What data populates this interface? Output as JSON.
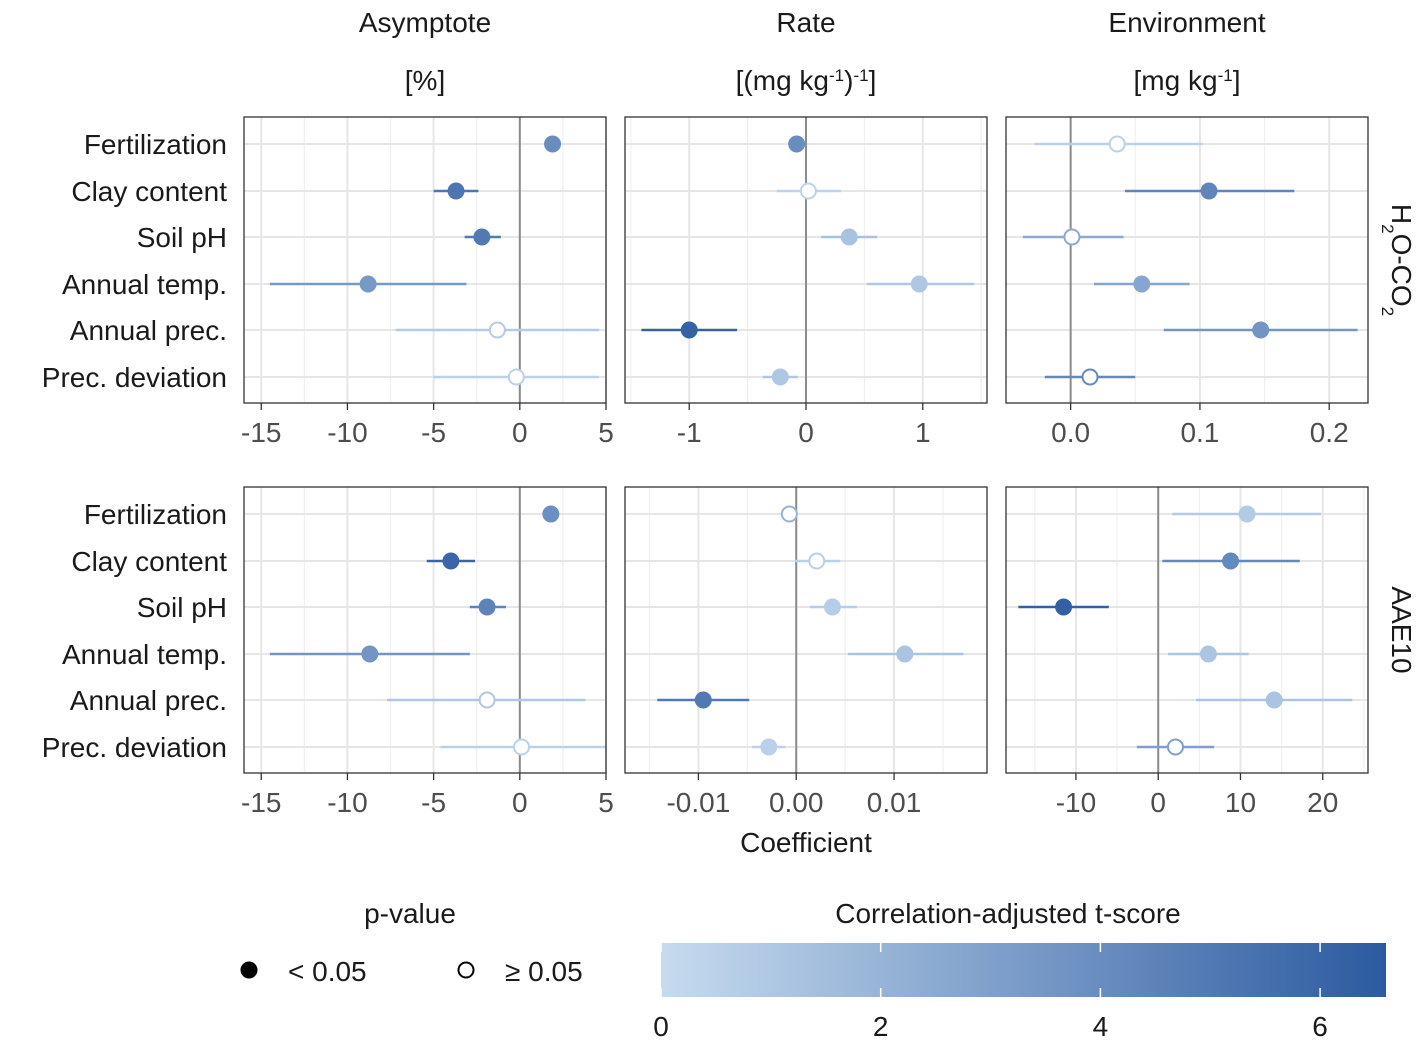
{
  "chart_data": {
    "type": "forest-plot",
    "xlabel": "Coefficient",
    "columns": [
      {
        "title": "Asymptote",
        "unit": "[%]"
      },
      {
        "title": "Rate",
        "unit_html": "[(mg kg<tspan baseline-shift=\"super\" font-size=\"17\">-1</tspan>)<tspan baseline-shift=\"super\" font-size=\"17\">-1</tspan>]"
      },
      {
        "title": "Environment",
        "unit_html": "[mg kg<tspan baseline-shift=\"super\" font-size=\"17\">-1</tspan>]"
      }
    ],
    "rows": [
      {
        "label_html": "H<tspan baseline-shift=\"sub\" font-size=\"17\">2</tspan>O-CO<tspan baseline-shift=\"sub\" font-size=\"17\">2</tspan>"
      },
      {
        "label": "AAE10"
      }
    ],
    "predictors": [
      "Fertilization",
      "Clay content",
      "Soil pH",
      "Annual temp.",
      "Annual prec.",
      "Prec. deviation"
    ],
    "panels": [
      {
        "row": 0,
        "col": 0,
        "xlim": [
          -16.0,
          5.0
        ],
        "ticks": [
          -15,
          -10,
          -5,
          0,
          5
        ],
        "tick_labels": [
          "-15",
          "-10",
          "-5",
          "0",
          "5"
        ],
        "estimates": [
          {
            "est": 1.9,
            "lo": 1.9,
            "hi": 1.9,
            "t": 4.0,
            "sig": true
          },
          {
            "est": -3.7,
            "lo": -5.0,
            "hi": -2.4,
            "t": 5.2,
            "sig": true
          },
          {
            "est": -2.2,
            "lo": -3.2,
            "hi": -1.1,
            "t": 5.0,
            "sig": true
          },
          {
            "est": -8.8,
            "lo": -14.5,
            "hi": -3.1,
            "t": 3.4,
            "sig": true
          },
          {
            "est": -1.3,
            "lo": -7.2,
            "hi": 4.6,
            "t": 0.8,
            "sig": false
          },
          {
            "est": -0.2,
            "lo": -5.0,
            "hi": 4.6,
            "t": 0.5,
            "sig": false
          }
        ]
      },
      {
        "row": 0,
        "col": 1,
        "xlim": [
          -1.55,
          1.55
        ],
        "ticks": [
          -1,
          0,
          1
        ],
        "tick_labels": [
          "-1",
          "0",
          "1"
        ],
        "estimates": [
          {
            "est": -0.08,
            "lo": -0.08,
            "hi": -0.08,
            "t": 4.0,
            "sig": true
          },
          {
            "est": 0.02,
            "lo": -0.25,
            "hi": 0.3,
            "t": 0.4,
            "sig": false
          },
          {
            "est": 0.37,
            "lo": 0.13,
            "hi": 0.61,
            "t": 1.3,
            "sig": true
          },
          {
            "est": 0.97,
            "lo": 0.52,
            "hi": 1.44,
            "t": 1.0,
            "sig": true
          },
          {
            "est": -1.0,
            "lo": -1.41,
            "hi": -0.59,
            "t": 6.2,
            "sig": true
          },
          {
            "est": -0.22,
            "lo": -0.37,
            "hi": -0.07,
            "t": 1.0,
            "sig": true
          }
        ]
      },
      {
        "row": 0,
        "col": 2,
        "xlim": [
          -0.05,
          0.23
        ],
        "ticks": [
          0.0,
          0.1,
          0.2
        ],
        "tick_labels": [
          "0.0",
          "0.1",
          "0.2"
        ],
        "estimates": [
          {
            "est": 0.036,
            "lo": -0.028,
            "hi": 0.102,
            "t": 0.5,
            "sig": false
          },
          {
            "est": 0.107,
            "lo": 0.042,
            "hi": 0.173,
            "t": 4.4,
            "sig": true
          },
          {
            "est": 0.001,
            "lo": -0.037,
            "hi": 0.041,
            "t": 2.5,
            "sig": false
          },
          {
            "est": 0.055,
            "lo": 0.018,
            "hi": 0.092,
            "t": 2.7,
            "sig": true
          },
          {
            "est": 0.147,
            "lo": 0.072,
            "hi": 0.222,
            "t": 3.6,
            "sig": true
          },
          {
            "est": 0.015,
            "lo": -0.02,
            "hi": 0.05,
            "t": 4.2,
            "sig": false
          }
        ]
      },
      {
        "row": 1,
        "col": 0,
        "xlim": [
          -16.0,
          5.0
        ],
        "ticks": [
          -15,
          -10,
          -5,
          0,
          5
        ],
        "tick_labels": [
          "-15",
          "-10",
          "-5",
          "0",
          "5"
        ],
        "estimates": [
          {
            "est": 1.8,
            "lo": 1.8,
            "hi": 1.8,
            "t": 3.9,
            "sig": true
          },
          {
            "est": -4.0,
            "lo": -5.4,
            "hi": -2.6,
            "t": 6.0,
            "sig": true
          },
          {
            "est": -1.9,
            "lo": -2.9,
            "hi": -0.8,
            "t": 4.5,
            "sig": true
          },
          {
            "est": -8.7,
            "lo": -14.5,
            "hi": -2.9,
            "t": 3.6,
            "sig": true
          },
          {
            "est": -1.9,
            "lo": -7.7,
            "hi": 3.8,
            "t": 1.0,
            "sig": false
          },
          {
            "est": 0.1,
            "lo": -4.6,
            "hi": 5.0,
            "t": 0.5,
            "sig": false
          }
        ]
      },
      {
        "row": 1,
        "col": 1,
        "xlim": [
          -0.0175,
          0.0195
        ],
        "ticks": [
          -0.01,
          0.0,
          0.01
        ],
        "tick_labels": [
          "-0.01",
          "0.00",
          "0.01"
        ],
        "estimates": [
          {
            "est": -0.0007,
            "lo": -0.0007,
            "hi": -0.0007,
            "t": 2.0,
            "sig": false
          },
          {
            "est": 0.0021,
            "lo": -0.0001,
            "hi": 0.0045,
            "t": 0.6,
            "sig": false
          },
          {
            "est": 0.0037,
            "lo": 0.0014,
            "hi": 0.0062,
            "t": 0.7,
            "sig": true
          },
          {
            "est": 0.0111,
            "lo": 0.0053,
            "hi": 0.0171,
            "t": 1.2,
            "sig": true
          },
          {
            "est": -0.0095,
            "lo": -0.0142,
            "hi": -0.0048,
            "t": 5.0,
            "sig": true
          },
          {
            "est": -0.0028,
            "lo": -0.0045,
            "hi": -0.0011,
            "t": 0.5,
            "sig": true
          }
        ]
      },
      {
        "row": 1,
        "col": 2,
        "xlim": [
          -18.5,
          25.5
        ],
        "ticks": [
          -10,
          0,
          10,
          20
        ],
        "tick_labels": [
          "-10",
          "0",
          "10",
          "20"
        ],
        "estimates": [
          {
            "est": 10.8,
            "lo": 1.7,
            "hi": 19.8,
            "t": 0.8,
            "sig": true
          },
          {
            "est": 8.8,
            "lo": 0.5,
            "hi": 17.2,
            "t": 4.2,
            "sig": true
          },
          {
            "est": -11.5,
            "lo": -17.0,
            "hi": -6.0,
            "t": 6.3,
            "sig": true
          },
          {
            "est": 6.1,
            "lo": 1.2,
            "hi": 11.0,
            "t": 1.1,
            "sig": true
          },
          {
            "est": 14.1,
            "lo": 4.6,
            "hi": 23.6,
            "t": 1.2,
            "sig": true
          },
          {
            "est": 2.1,
            "lo": -2.6,
            "hi": 6.8,
            "t": 3.0,
            "sig": false
          }
        ]
      }
    ],
    "legend": {
      "shape_title": "p-value",
      "shape_items": [
        {
          "label": "< 0.05",
          "filled": true
        },
        {
          "label": "≥ 0.05",
          "filled": false
        }
      ],
      "color_title": "Correlation-adjusted t-score",
      "color_ticks": [
        0,
        2,
        4,
        6
      ],
      "color_range": [
        0,
        6.6
      ],
      "color_low": "#c6dbef",
      "color_high": "#2c5aa0"
    }
  }
}
